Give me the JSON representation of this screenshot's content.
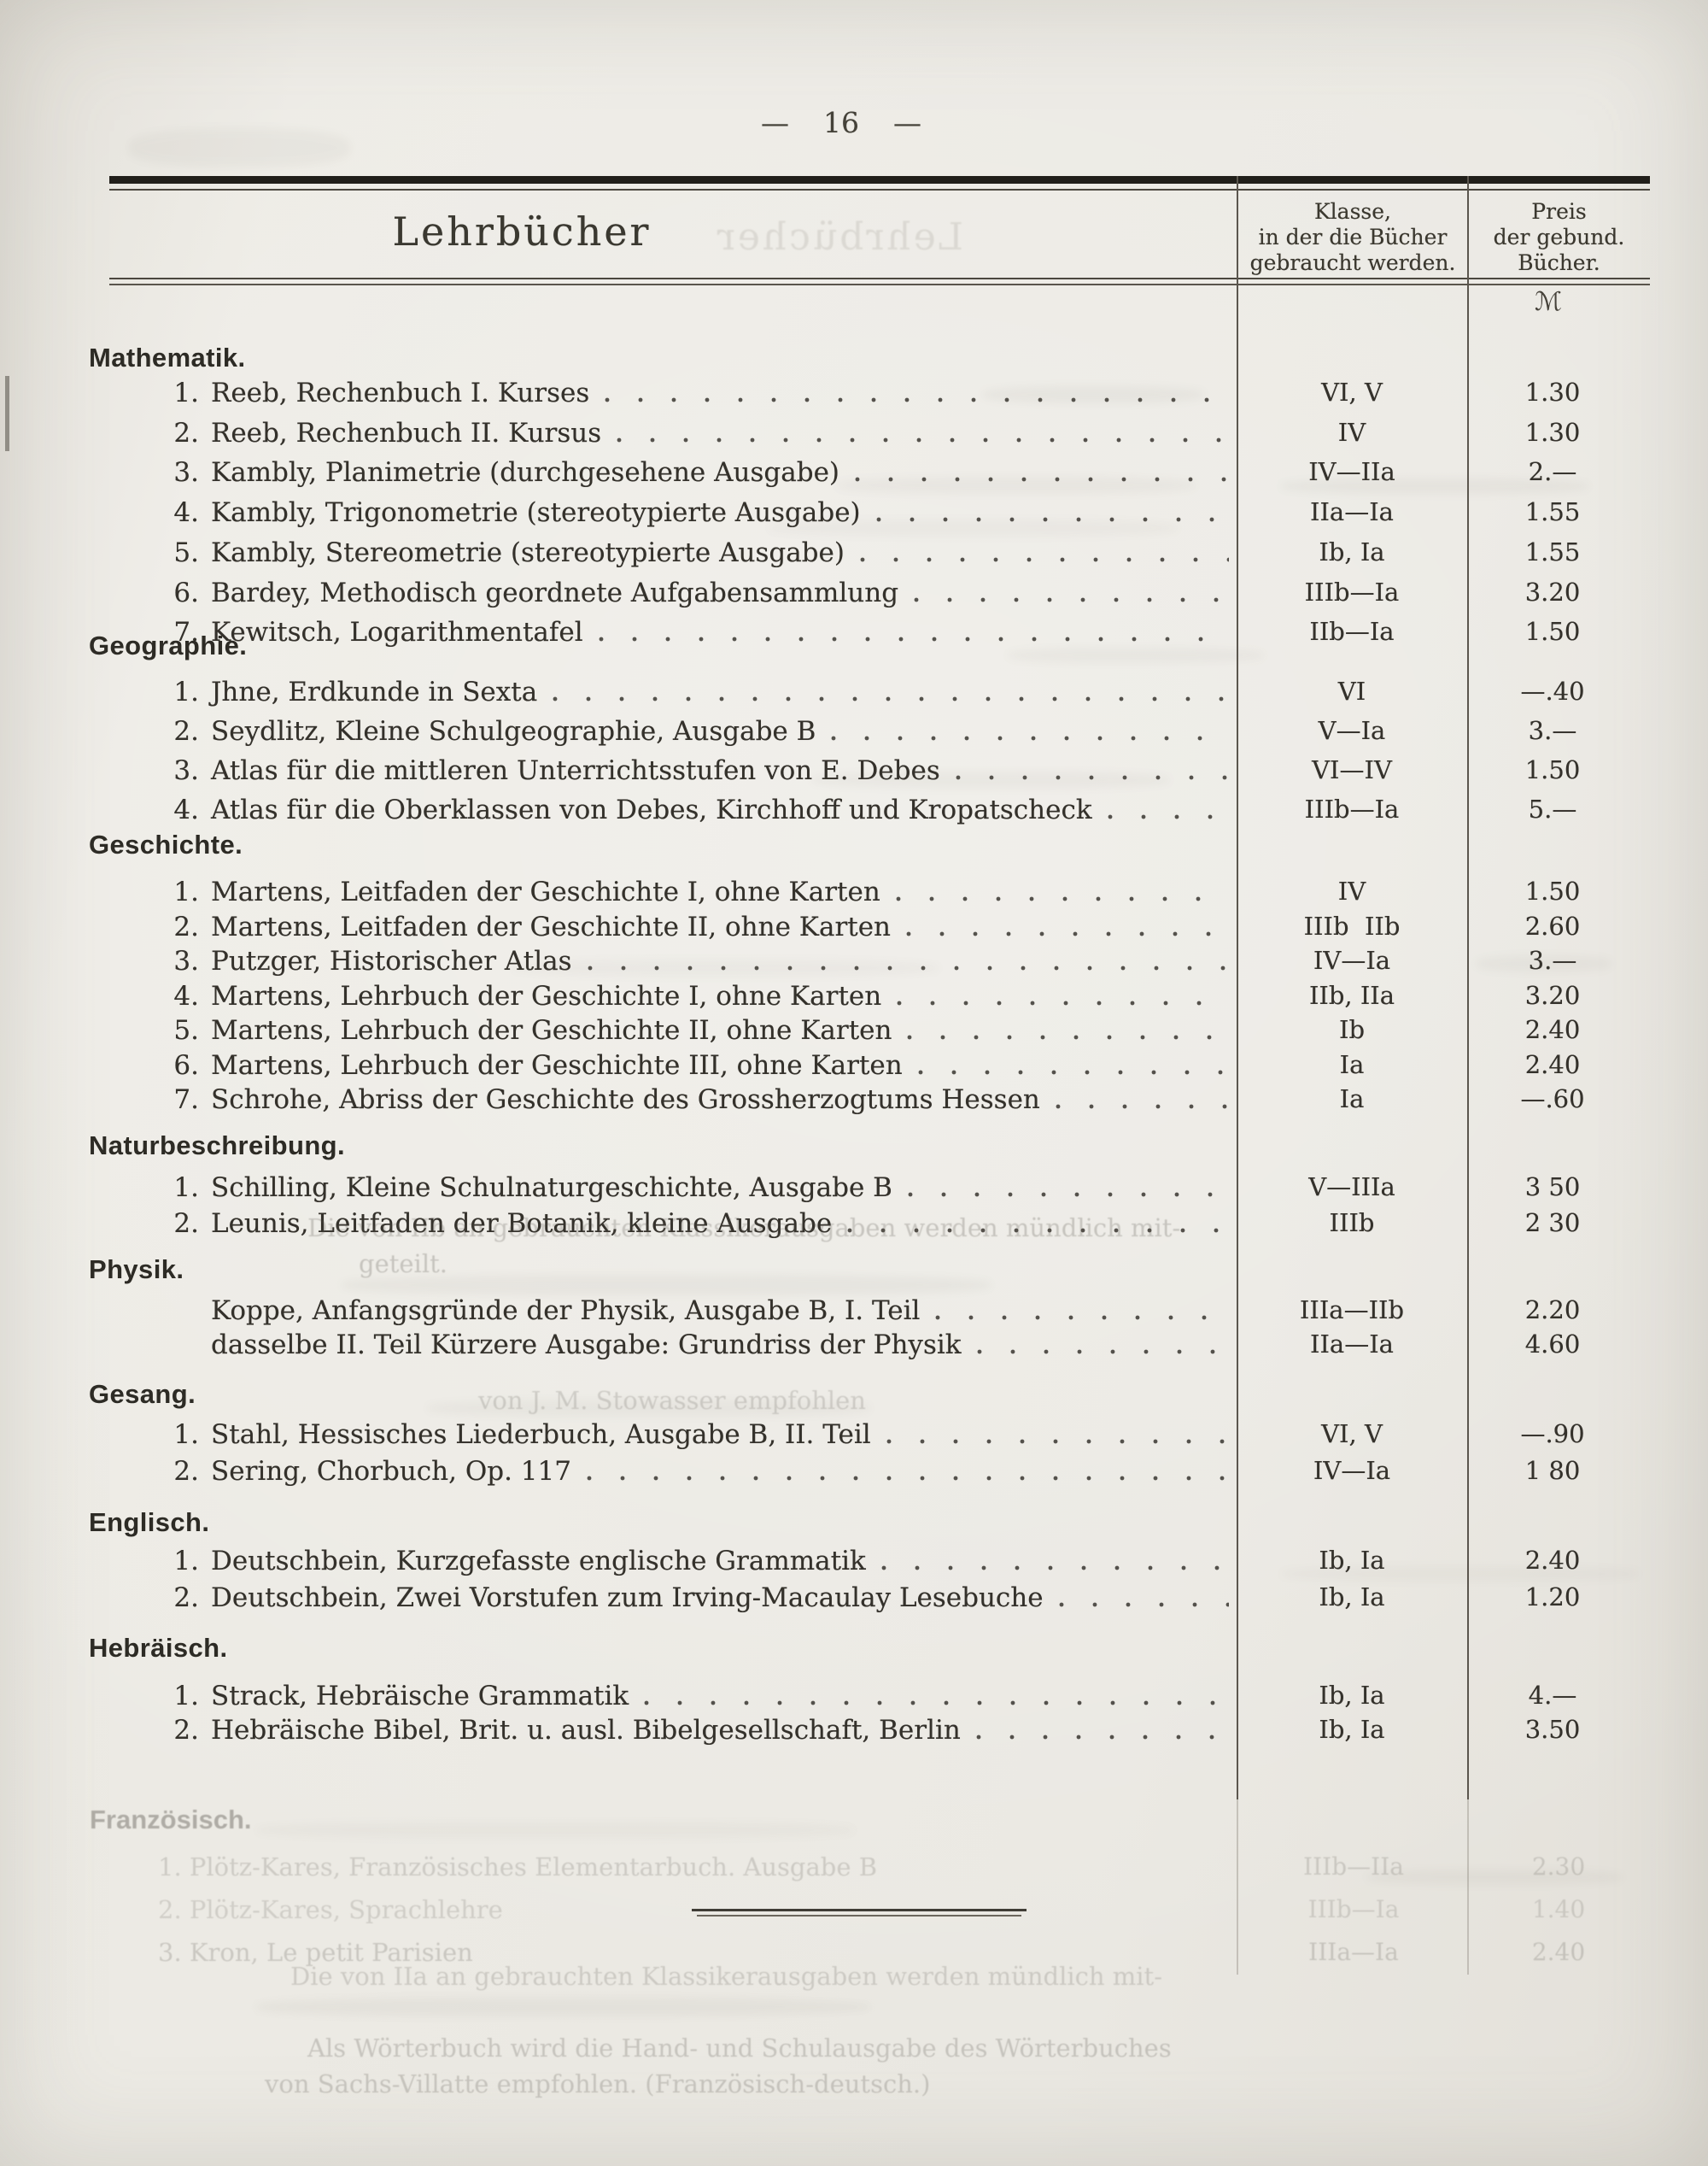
{
  "page": {
    "number": "16",
    "dash_left": "—",
    "dash_right": "—"
  },
  "table": {
    "title": "Lehrbücher",
    "col_class_header": [
      "Klasse,",
      "in der die Bücher",
      "gebraucht werden."
    ],
    "col_price_header": [
      "Preis",
      "der gebund.",
      "Bücher."
    ],
    "currency_symbol": "ℳ"
  },
  "sections": [
    {
      "name": "Mathematik.",
      "items": [
        {
          "num": "1.",
          "title": "Reeb, Rechenbuch I. Kurses",
          "klasse": "VI, V",
          "preis": "1.30"
        },
        {
          "num": "2.",
          "title": "Reeb, Rechenbuch II. Kursus",
          "klasse": "IV",
          "preis": "1.30"
        },
        {
          "num": "3.",
          "title": "Kambly, Planimetrie (durchgesehene Ausgabe)",
          "klasse": "IV—IIa",
          "preis": "2.—"
        },
        {
          "num": "4.",
          "title": "Kambly, Trigonometrie (stereotypierte Ausgabe)",
          "klasse": "IIa—Ia",
          "preis": "1.55"
        },
        {
          "num": "5.",
          "title": "Kambly, Stereometrie (stereotypierte Ausgabe)",
          "klasse": "Ib, Ia",
          "preis": "1.55"
        },
        {
          "num": "6.",
          "title": "Bardey, Methodisch geordnete Aufgabensammlung",
          "klasse": "IIIb—Ia",
          "preis": "3.20"
        },
        {
          "num": "7.",
          "title": "Kewitsch, Logarithmentafel",
          "klasse": "IIb—Ia",
          "preis": "1.50"
        }
      ]
    },
    {
      "name": "Geographie.",
      "items": [
        {
          "num": "1.",
          "title": "Jhne, Erdkunde in Sexta",
          "klasse": "VI",
          "preis": "—.40"
        },
        {
          "num": "2.",
          "title": "Seydlitz, Kleine Schulgeographie, Ausgabe B",
          "klasse": "V—Ia",
          "preis": "3.—"
        },
        {
          "num": "3.",
          "title": "Atlas für die mittleren Unterrichtsstufen von E. Debes",
          "klasse": "VI—IV",
          "preis": "1.50"
        },
        {
          "num": "4.",
          "title": "Atlas für die Oberklassen von Debes, Kirchhoff und Kropatscheck",
          "klasse": "IIIb—Ia",
          "preis": "5.—"
        }
      ]
    },
    {
      "name": "Geschichte.",
      "items": [
        {
          "num": "1.",
          "title": "Martens, Leitfaden der Geschichte I, ohne Karten",
          "klasse": "IV",
          "preis": "1.50"
        },
        {
          "num": "2.",
          "title": "Martens, Leitfaden der Geschichte II, ohne Karten",
          "klasse": "IIIb  IIb",
          "preis": "2.60"
        },
        {
          "num": "3.",
          "title": "Putzger, Historischer Atlas",
          "klasse": "IV—Ia",
          "preis": "3.—"
        },
        {
          "num": "4.",
          "title": "Martens, Lehrbuch der Geschichte I, ohne Karten",
          "klasse": "IIb, IIa",
          "preis": "3.20"
        },
        {
          "num": "5.",
          "title": "Martens, Lehrbuch der Geschichte II, ohne Karten",
          "klasse": "Ib",
          "preis": "2.40"
        },
        {
          "num": "6.",
          "title": "Martens, Lehrbuch der Geschichte III, ohne Karten",
          "klasse": "Ia",
          "preis": "2.40"
        },
        {
          "num": "7.",
          "title": "Schrohe, Abriss der Geschichte des Grossherzogtums Hessen",
          "klasse": "Ia",
          "preis": "—.60"
        }
      ]
    },
    {
      "name": "Naturbeschreibung.",
      "items": [
        {
          "num": "1.",
          "title": "Schilling, Kleine Schulnaturgeschichte, Ausgabe B",
          "klasse": "V—IIIa",
          "preis": "3 50"
        },
        {
          "num": "2.",
          "title": "Leunis, Leitfaden der Botanik, kleine Ausgabe",
          "klasse": "IIIb",
          "preis": "2 30"
        }
      ]
    },
    {
      "name": "Physik.",
      "items": [
        {
          "num": "",
          "title": "Koppe, Anfangsgründe der Physik, Ausgabe B, I. Teil",
          "klasse": "IIIa—IIb",
          "preis": "2.20"
        },
        {
          "num": "",
          "title": "dasselbe II. Teil Kürzere Ausgabe: Grundriss der Physik",
          "klasse": "IIa—Ia",
          "preis": "4.60"
        }
      ]
    },
    {
      "name": "Gesang.",
      "items": [
        {
          "num": "1.",
          "title": "Stahl, Hessisches Liederbuch, Ausgabe B, II. Teil",
          "klasse": "VI, V",
          "preis": "—.90"
        },
        {
          "num": "2.",
          "title": "Sering, Chorbuch, Op. 117",
          "klasse": "IV—Ia",
          "preis": "1 80"
        }
      ]
    },
    {
      "name": "Englisch.",
      "items": [
        {
          "num": "1.",
          "title": "Deutschbein, Kurzgefasste englische Grammatik",
          "klasse": "Ib, Ia",
          "preis": "2.40"
        },
        {
          "num": "2.",
          "title": "Deutschbein, Zwei Vorstufen zum Irving-Macaulay Lesebuche",
          "klasse": "Ib, Ia",
          "preis": "1.20"
        }
      ]
    },
    {
      "name": "Hebräisch.",
      "items": [
        {
          "num": "1.",
          "title": "Strack, Hebräische Grammatik",
          "klasse": "Ib, Ia",
          "preis": "4.—"
        },
        {
          "num": "2.",
          "title": "Hebräische Bibel, Brit. u. ausl. Bibelgesellschaft, Berlin",
          "klasse": "Ib, Ia",
          "preis": "3.50"
        }
      ]
    }
  ],
  "ghosts": {
    "lines": [
      {
        "text": "Die von IIb an gebrauchten Klassikerausgaben werden mündlich mit-"
      },
      {
        "text": "geteilt."
      },
      {
        "text": "von J. M. Stowasser empfohlen"
      },
      {
        "text": "Französisch."
      },
      {
        "text": "1. Plötz-Kares, Französisches Elementarbuch. Ausgabe B",
        "klasse": "IIIb—IIa",
        "preis": "2.30"
      },
      {
        "text": "2. Plötz-Kares, Sprachlehre",
        "klasse": "IIIb—Ia",
        "preis": "1.40"
      },
      {
        "text": "3. Kron, Le petit Parisien",
        "klasse": "IIIa—Ia",
        "preis": "2.40"
      },
      {
        "text": "Die von IIa an gebrauchten Klassikerausgaben werden mündlich mit-"
      },
      {
        "text": "Als Wörterbuch wird die Hand- und Schulausgabe des Wörterbuches"
      },
      {
        "text": "von Sachs-Villatte empfohlen. (Französisch-deutsch.)"
      }
    ]
  }
}
